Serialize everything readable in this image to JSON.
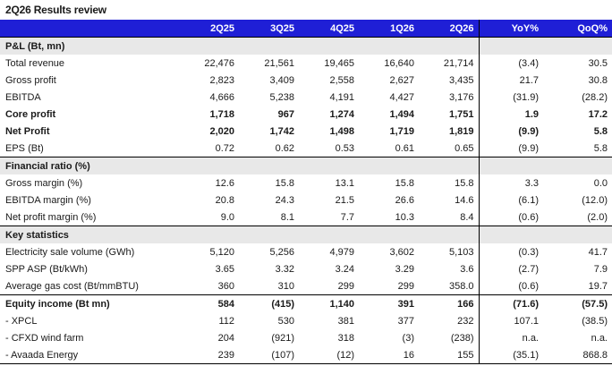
{
  "title": "2Q26 Results review",
  "columns": [
    "",
    "2Q25",
    "3Q25",
    "4Q25",
    "1Q26",
    "2Q26",
    "YoY%",
    "QoQ%"
  ],
  "rows": [
    {
      "type": "section",
      "label": "P&L (Bt, mn)"
    },
    {
      "type": "data",
      "label": "Total revenue",
      "values": [
        "22,476",
        "21,561",
        "19,465",
        "16,640",
        "21,714",
        "(3.4)",
        "30.5"
      ]
    },
    {
      "type": "data",
      "label": "Gross profit",
      "values": [
        "2,823",
        "3,409",
        "2,558",
        "2,627",
        "3,435",
        "21.7",
        "30.8"
      ]
    },
    {
      "type": "data",
      "label": "EBITDA",
      "values": [
        "4,666",
        "5,238",
        "4,191",
        "4,427",
        "3,176",
        "(31.9)",
        "(28.2)"
      ]
    },
    {
      "type": "bold",
      "label": "Core profit",
      "values": [
        "1,718",
        "967",
        "1,274",
        "1,494",
        "1,751",
        "1.9",
        "17.2"
      ]
    },
    {
      "type": "bold",
      "label": "Net Profit",
      "values": [
        "2,020",
        "1,742",
        "1,498",
        "1,719",
        "1,819",
        "(9.9)",
        "5.8"
      ]
    },
    {
      "type": "data",
      "label": "EPS (Bt)",
      "values": [
        "0.72",
        "0.62",
        "0.53",
        "0.61",
        "0.65",
        "(9.9)",
        "5.8"
      ]
    },
    {
      "type": "section",
      "label": "Financial ratio (%)"
    },
    {
      "type": "data",
      "label": "Gross margin (%)",
      "values": [
        "12.6",
        "15.8",
        "13.1",
        "15.8",
        "15.8",
        "3.3",
        "0.0"
      ]
    },
    {
      "type": "data",
      "label": "EBITDA margin (%)",
      "values": [
        "20.8",
        "24.3",
        "21.5",
        "26.6",
        "14.6",
        "(6.1)",
        "(12.0)"
      ]
    },
    {
      "type": "data",
      "label": "Net profit margin (%)",
      "values": [
        "9.0",
        "8.1",
        "7.7",
        "10.3",
        "8.4",
        "(0.6)",
        "(2.0)"
      ]
    },
    {
      "type": "section",
      "label": "Key statistics"
    },
    {
      "type": "data",
      "label": "Electricity sale volume (GWh)",
      "values": [
        "5,120",
        "5,256",
        "4,979",
        "3,602",
        "5,103",
        "(0.3)",
        "41.7"
      ]
    },
    {
      "type": "data",
      "label": "SPP ASP (Bt/kWh)",
      "values": [
        "3.65",
        "3.32",
        "3.24",
        "3.29",
        "3.6",
        "(2.7)",
        "7.9"
      ]
    },
    {
      "type": "data",
      "label": "Average gas cost (Bt/mmBTU)",
      "values": [
        "360",
        "310",
        "299",
        "299",
        "358.0",
        "(0.6)",
        "19.7"
      ]
    },
    {
      "type": "boldline",
      "label": "Equity income (Bt mn)",
      "values": [
        "584",
        "(415)",
        "1,140",
        "391",
        "166",
        "(71.6)",
        "(57.5)"
      ]
    },
    {
      "type": "data",
      "label": " - XPCL",
      "values": [
        "112",
        "530",
        "381",
        "377",
        "232",
        "107.1",
        "(38.5)"
      ]
    },
    {
      "type": "data",
      "label": " - CFXD wind farm",
      "values": [
        "204",
        "(921)",
        "318",
        "(3)",
        "(238)",
        "n.a.",
        "n.a."
      ]
    },
    {
      "type": "data",
      "label": " - Avaada Energy",
      "values": [
        "239",
        "(107)",
        "(12)",
        "16",
        "155",
        "(35.1)",
        "868.8"
      ]
    }
  ]
}
